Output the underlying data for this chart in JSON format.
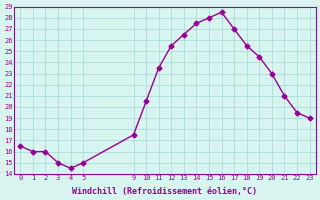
{
  "hours": [
    0,
    1,
    2,
    3,
    4,
    5,
    9,
    10,
    11,
    12,
    13,
    14,
    15,
    16,
    17,
    18,
    19,
    20,
    21,
    22,
    23
  ],
  "values": [
    16.5,
    16.0,
    16.0,
    15.0,
    14.5,
    15.0,
    17.5,
    20.5,
    23.5,
    25.5,
    26.5,
    27.5,
    28.0,
    28.5,
    27.0,
    25.5,
    24.5,
    23.0,
    21.0,
    19.5,
    19.0
  ],
  "ylim": [
    14,
    29
  ],
  "yticks": [
    14,
    15,
    16,
    17,
    18,
    19,
    20,
    21,
    22,
    23,
    24,
    25,
    26,
    27,
    28,
    29
  ],
  "line_color": "#990099",
  "marker": "D",
  "marker_size": 2.5,
  "bg_color": "#d8f5f0",
  "grid_color": "#aadddd",
  "xlabel": "Windchill (Refroidissement éolien,°C)"
}
